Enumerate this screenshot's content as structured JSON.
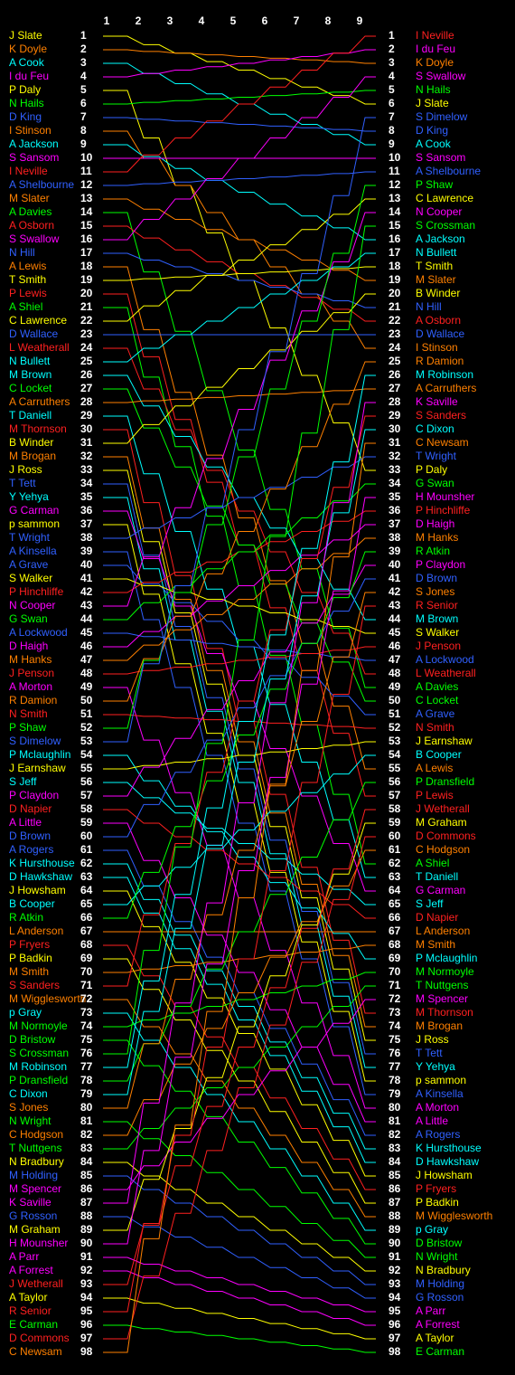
{
  "chart_data": {
    "type": "line",
    "title": "",
    "rounds": [
      "1",
      "2",
      "3",
      "4",
      "5",
      "6",
      "7",
      "8",
      "9"
    ],
    "y_axis": "rank (1 at top)",
    "start_order": [
      {
        "name": "J Slate",
        "color": "#ffff00"
      },
      {
        "name": "K Doyle",
        "color": "#ff8000"
      },
      {
        "name": "A Cook",
        "color": "#00ffff"
      },
      {
        "name": "I du Feu",
        "color": "#ff00ff"
      },
      {
        "name": "P Daly",
        "color": "#ffff00"
      },
      {
        "name": "N Hails",
        "color": "#00ff00"
      },
      {
        "name": "D King",
        "color": "#3060ff"
      },
      {
        "name": "I Stinson",
        "color": "#ff8000"
      },
      {
        "name": "A Jackson",
        "color": "#00ffff"
      },
      {
        "name": "S Sansom",
        "color": "#ff00ff"
      },
      {
        "name": "I Neville",
        "color": "#ff2020"
      },
      {
        "name": "A Shelbourne",
        "color": "#3060ff"
      },
      {
        "name": "M Slater",
        "color": "#ff8000"
      },
      {
        "name": "A Davies",
        "color": "#00ff00"
      },
      {
        "name": "A Osborn",
        "color": "#ff2020"
      },
      {
        "name": "S Swallow",
        "color": "#ff00ff"
      },
      {
        "name": "N Hill",
        "color": "#3060ff"
      },
      {
        "name": "A Lewis",
        "color": "#ff8000"
      },
      {
        "name": "T Smith",
        "color": "#ffff00"
      },
      {
        "name": "P Lewis",
        "color": "#ff2020"
      },
      {
        "name": "A Shiel",
        "color": "#00ff00"
      },
      {
        "name": "C Lawrence",
        "color": "#ffff00"
      },
      {
        "name": "D Wallace",
        "color": "#3060ff"
      },
      {
        "name": "L Weatherall",
        "color": "#ff2020"
      },
      {
        "name": "N Bullett",
        "color": "#00ffff"
      },
      {
        "name": "M Brown",
        "color": "#00ffff"
      },
      {
        "name": "C Locket",
        "color": "#00ff00"
      },
      {
        "name": "A Carruthers",
        "color": "#ff8000"
      },
      {
        "name": "T Daniell",
        "color": "#00ffff"
      },
      {
        "name": "M Thornson",
        "color": "#ff2020"
      },
      {
        "name": "B Winder",
        "color": "#ffff00"
      },
      {
        "name": "M Brogan",
        "color": "#ff8000"
      },
      {
        "name": "J Ross",
        "color": "#ffff00"
      },
      {
        "name": "T Tett",
        "color": "#3060ff"
      },
      {
        "name": "Y Yehya",
        "color": "#00ffff"
      },
      {
        "name": "G Carman",
        "color": "#ff00ff"
      },
      {
        "name": "p sammon",
        "color": "#ffff00"
      },
      {
        "name": "T Wright",
        "color": "#3060ff"
      },
      {
        "name": "A Kinsella",
        "color": "#3060ff"
      },
      {
        "name": "A Grave",
        "color": "#3060ff"
      },
      {
        "name": "S Walker",
        "color": "#ffff00"
      },
      {
        "name": "P Hinchliffe",
        "color": "#ff2020"
      },
      {
        "name": "N Cooper",
        "color": "#ff00ff"
      },
      {
        "name": "G Swan",
        "color": "#00ff00"
      },
      {
        "name": "A Lockwood",
        "color": "#3060ff"
      },
      {
        "name": "D Haigh",
        "color": "#ff00ff"
      },
      {
        "name": "M Hanks",
        "color": "#ff8000"
      },
      {
        "name": "J Penson",
        "color": "#ff2020"
      },
      {
        "name": "A Morton",
        "color": "#ff00ff"
      },
      {
        "name": "R Damion",
        "color": "#ff8000"
      },
      {
        "name": "N Smith",
        "color": "#ff2020"
      },
      {
        "name": "P Shaw",
        "color": "#00ff00"
      },
      {
        "name": "S Dimelow",
        "color": "#3060ff"
      },
      {
        "name": "P Mclaughlin",
        "color": "#00ffff"
      },
      {
        "name": "J Earnshaw",
        "color": "#ffff00"
      },
      {
        "name": "S Jeff",
        "color": "#00ffff"
      },
      {
        "name": "P Claydon",
        "color": "#ff00ff"
      },
      {
        "name": "D Napier",
        "color": "#ff2020"
      },
      {
        "name": "A Little",
        "color": "#ff00ff"
      },
      {
        "name": "D Brown",
        "color": "#3060ff"
      },
      {
        "name": "A Rogers",
        "color": "#3060ff"
      },
      {
        "name": "K Hursthouse",
        "color": "#00ffff"
      },
      {
        "name": "D Hawkshaw",
        "color": "#00ffff"
      },
      {
        "name": "J Howsham",
        "color": "#ffff00"
      },
      {
        "name": "B Cooper",
        "color": "#00ffff"
      },
      {
        "name": "R Atkin",
        "color": "#00ff00"
      },
      {
        "name": "L Anderson",
        "color": "#ff8000"
      },
      {
        "name": "P Fryers",
        "color": "#ff2020"
      },
      {
        "name": "P Badkin",
        "color": "#ffff00"
      },
      {
        "name": "M Smith",
        "color": "#ff8000"
      },
      {
        "name": "S Sanders",
        "color": "#ff2020"
      },
      {
        "name": "M Wigglesworth",
        "color": "#ff8000"
      },
      {
        "name": "p Gray",
        "color": "#00ffff"
      },
      {
        "name": "M Normoyle",
        "color": "#00ff00"
      },
      {
        "name": "D Bristow",
        "color": "#00ff00"
      },
      {
        "name": "S Crossman",
        "color": "#00ff00"
      },
      {
        "name": "M Robinson",
        "color": "#00ffff"
      },
      {
        "name": "P Dransfield",
        "color": "#00ff00"
      },
      {
        "name": "C Dixon",
        "color": "#00ffff"
      },
      {
        "name": "S Jones",
        "color": "#ff8000"
      },
      {
        "name": "N Wright",
        "color": "#00ff00"
      },
      {
        "name": "C Hodgson",
        "color": "#ff8000"
      },
      {
        "name": "T Nuttgens",
        "color": "#00ff00"
      },
      {
        "name": "N Bradbury",
        "color": "#ffff00"
      },
      {
        "name": "M Holding",
        "color": "#3060ff"
      },
      {
        "name": "M Spencer",
        "color": "#ff00ff"
      },
      {
        "name": "K Saville",
        "color": "#ff00ff"
      },
      {
        "name": "G Rosson",
        "color": "#3060ff"
      },
      {
        "name": "M Graham",
        "color": "#ffff00"
      },
      {
        "name": "H Mounsher",
        "color": "#ff00ff"
      },
      {
        "name": "A Parr",
        "color": "#ff00ff"
      },
      {
        "name": "A Forrest",
        "color": "#ff00ff"
      },
      {
        "name": "J Wetherall",
        "color": "#ff2020"
      },
      {
        "name": "A Taylor",
        "color": "#ffff00"
      },
      {
        "name": "R Senior",
        "color": "#ff2020"
      },
      {
        "name": "E Carman",
        "color": "#00ff00"
      },
      {
        "name": "D Commons",
        "color": "#ff2020"
      },
      {
        "name": "C Newsam",
        "color": "#ff8000"
      }
    ],
    "final_order": [
      "I Neville",
      "I du Feu",
      "K Doyle",
      "S Swallow",
      "N Hails",
      "J Slate",
      "S Dimelow",
      "D King",
      "A Cook",
      "S Sansom",
      "A Shelbourne",
      "P Shaw",
      "C Lawrence",
      "N Cooper",
      "S Crossman",
      "A Jackson",
      "N Bullett",
      "T Smith",
      "M Slater",
      "B Winder",
      "N Hill",
      "A Osborn",
      "D Wallace",
      "I Stinson",
      "R Damion",
      "M Robinson",
      "A Carruthers",
      "K Saville",
      "S Sanders",
      "C Dixon",
      "C Newsam",
      "T Wright",
      "P Daly",
      "G Swan",
      "H Mounsher",
      "P Hinchliffe",
      "D Haigh",
      "M Hanks",
      "R Atkin",
      "P Claydon",
      "D Brown",
      "S Jones",
      "R Senior",
      "M Brown",
      "S Walker",
      "J Penson",
      "A Lockwood",
      "L Weatherall",
      "A Davies",
      "C Locket",
      "A Grave",
      "N Smith",
      "J Earnshaw",
      "B Cooper",
      "A Lewis",
      "P Dransfield",
      "P Lewis",
      "J Wetherall",
      "M Graham",
      "D Commons",
      "C Hodgson",
      "A Shiel",
      "T Daniell",
      "G Carman",
      "S Jeff",
      "D Napier",
      "L Anderson",
      "M Smith",
      "P Mclaughlin",
      "M Normoyle",
      "T Nuttgens",
      "M Spencer",
      "M Thornson",
      "M Brogan",
      "J Ross",
      "T Tett",
      "Y Yehya",
      "p sammon",
      "A Kinsella",
      "A Morton",
      "A Little",
      "A Rogers",
      "K Hursthouse",
      "D Hawkshaw",
      "J Howsham",
      "P Fryers",
      "P Badkin",
      "M Wigglesworth",
      "p Gray",
      "D Bristow",
      "N Wright",
      "N Bradbury",
      "M Holding",
      "G Rosson",
      "A Parr",
      "A Forrest",
      "A Taylor",
      "E Carman"
    ]
  }
}
